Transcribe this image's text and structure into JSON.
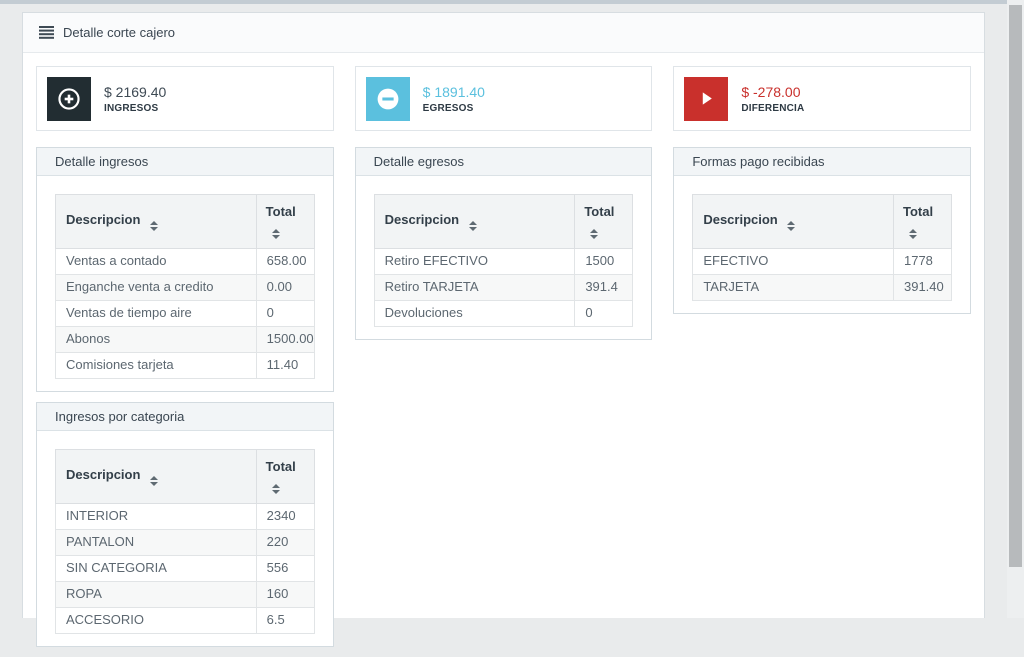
{
  "window": {
    "title": "Detalle corte cajero",
    "title_icon": "menu-icon"
  },
  "summary_cards": [
    {
      "label": "INGRESOS",
      "value": "$ 2169.40",
      "icon": "plus-circle-icon",
      "icon_bg": "#222d32",
      "value_color": "#3e4a54"
    },
    {
      "label": "EGRESOS",
      "value": "$ 1891.40",
      "icon": "minus-circle-icon",
      "icon_bg": "#5bc0de",
      "value_color": "#5bc0de"
    },
    {
      "label": "DIFERENCIA",
      "value": "$ -278.00",
      "icon": "caret-right-icon",
      "icon_bg": "#c9302c",
      "value_color": "#c9302c"
    }
  ],
  "panels": {
    "detalle_ingresos": {
      "title": "Detalle ingresos",
      "columns": [
        "Descripcion",
        "Total"
      ],
      "sort_icon": "sort-icon",
      "rows": [
        [
          "Ventas a contado",
          "658.00"
        ],
        [
          "Enganche venta a credito",
          "0.00"
        ],
        [
          "Ventas de tiempo aire",
          "0"
        ],
        [
          "Abonos",
          "1500.00"
        ],
        [
          "Comisiones tarjeta",
          "11.40"
        ]
      ]
    },
    "detalle_egresos": {
      "title": "Detalle egresos",
      "columns": [
        "Descripcion",
        "Total"
      ],
      "sort_icon": "sort-icon",
      "rows": [
        [
          "Retiro EFECTIVO",
          "1500"
        ],
        [
          "Retiro TARJETA",
          "391.4"
        ],
        [
          "Devoluciones",
          "0"
        ]
      ]
    },
    "formas_pago_recibidas": {
      "title": "Formas pago recibidas",
      "columns": [
        "Descripcion",
        "Total"
      ],
      "sort_icon": "sort-icon",
      "rows": [
        [
          "EFECTIVO",
          "1778"
        ],
        [
          "TARJETA",
          "391.40"
        ]
      ]
    },
    "ingresos_por_categoria": {
      "title": "Ingresos por categoria",
      "columns": [
        "Descripcion",
        "Total"
      ],
      "sort_icon": "sort-icon",
      "rows": [
        [
          "INTERIOR",
          "2340"
        ],
        [
          "PANTALON",
          "220"
        ],
        [
          "SIN CATEGORIA",
          "556"
        ],
        [
          "ROPA",
          "160"
        ],
        [
          "ACCESORIO",
          "6.5"
        ]
      ]
    }
  },
  "colors": {
    "page_bg": "#e9ebec",
    "top_strip": "#c3ccd3",
    "container_bg": "#ffffff",
    "panel_header_bg": "#f2f5f7",
    "table_header_bg": "#f2f4f5",
    "stripe_bg": "#f7f8f8",
    "accent_dark": "#222d32",
    "accent_info": "#5bc0de",
    "accent_danger": "#c9302c",
    "scrollbar_thumb": "#b7babc"
  }
}
